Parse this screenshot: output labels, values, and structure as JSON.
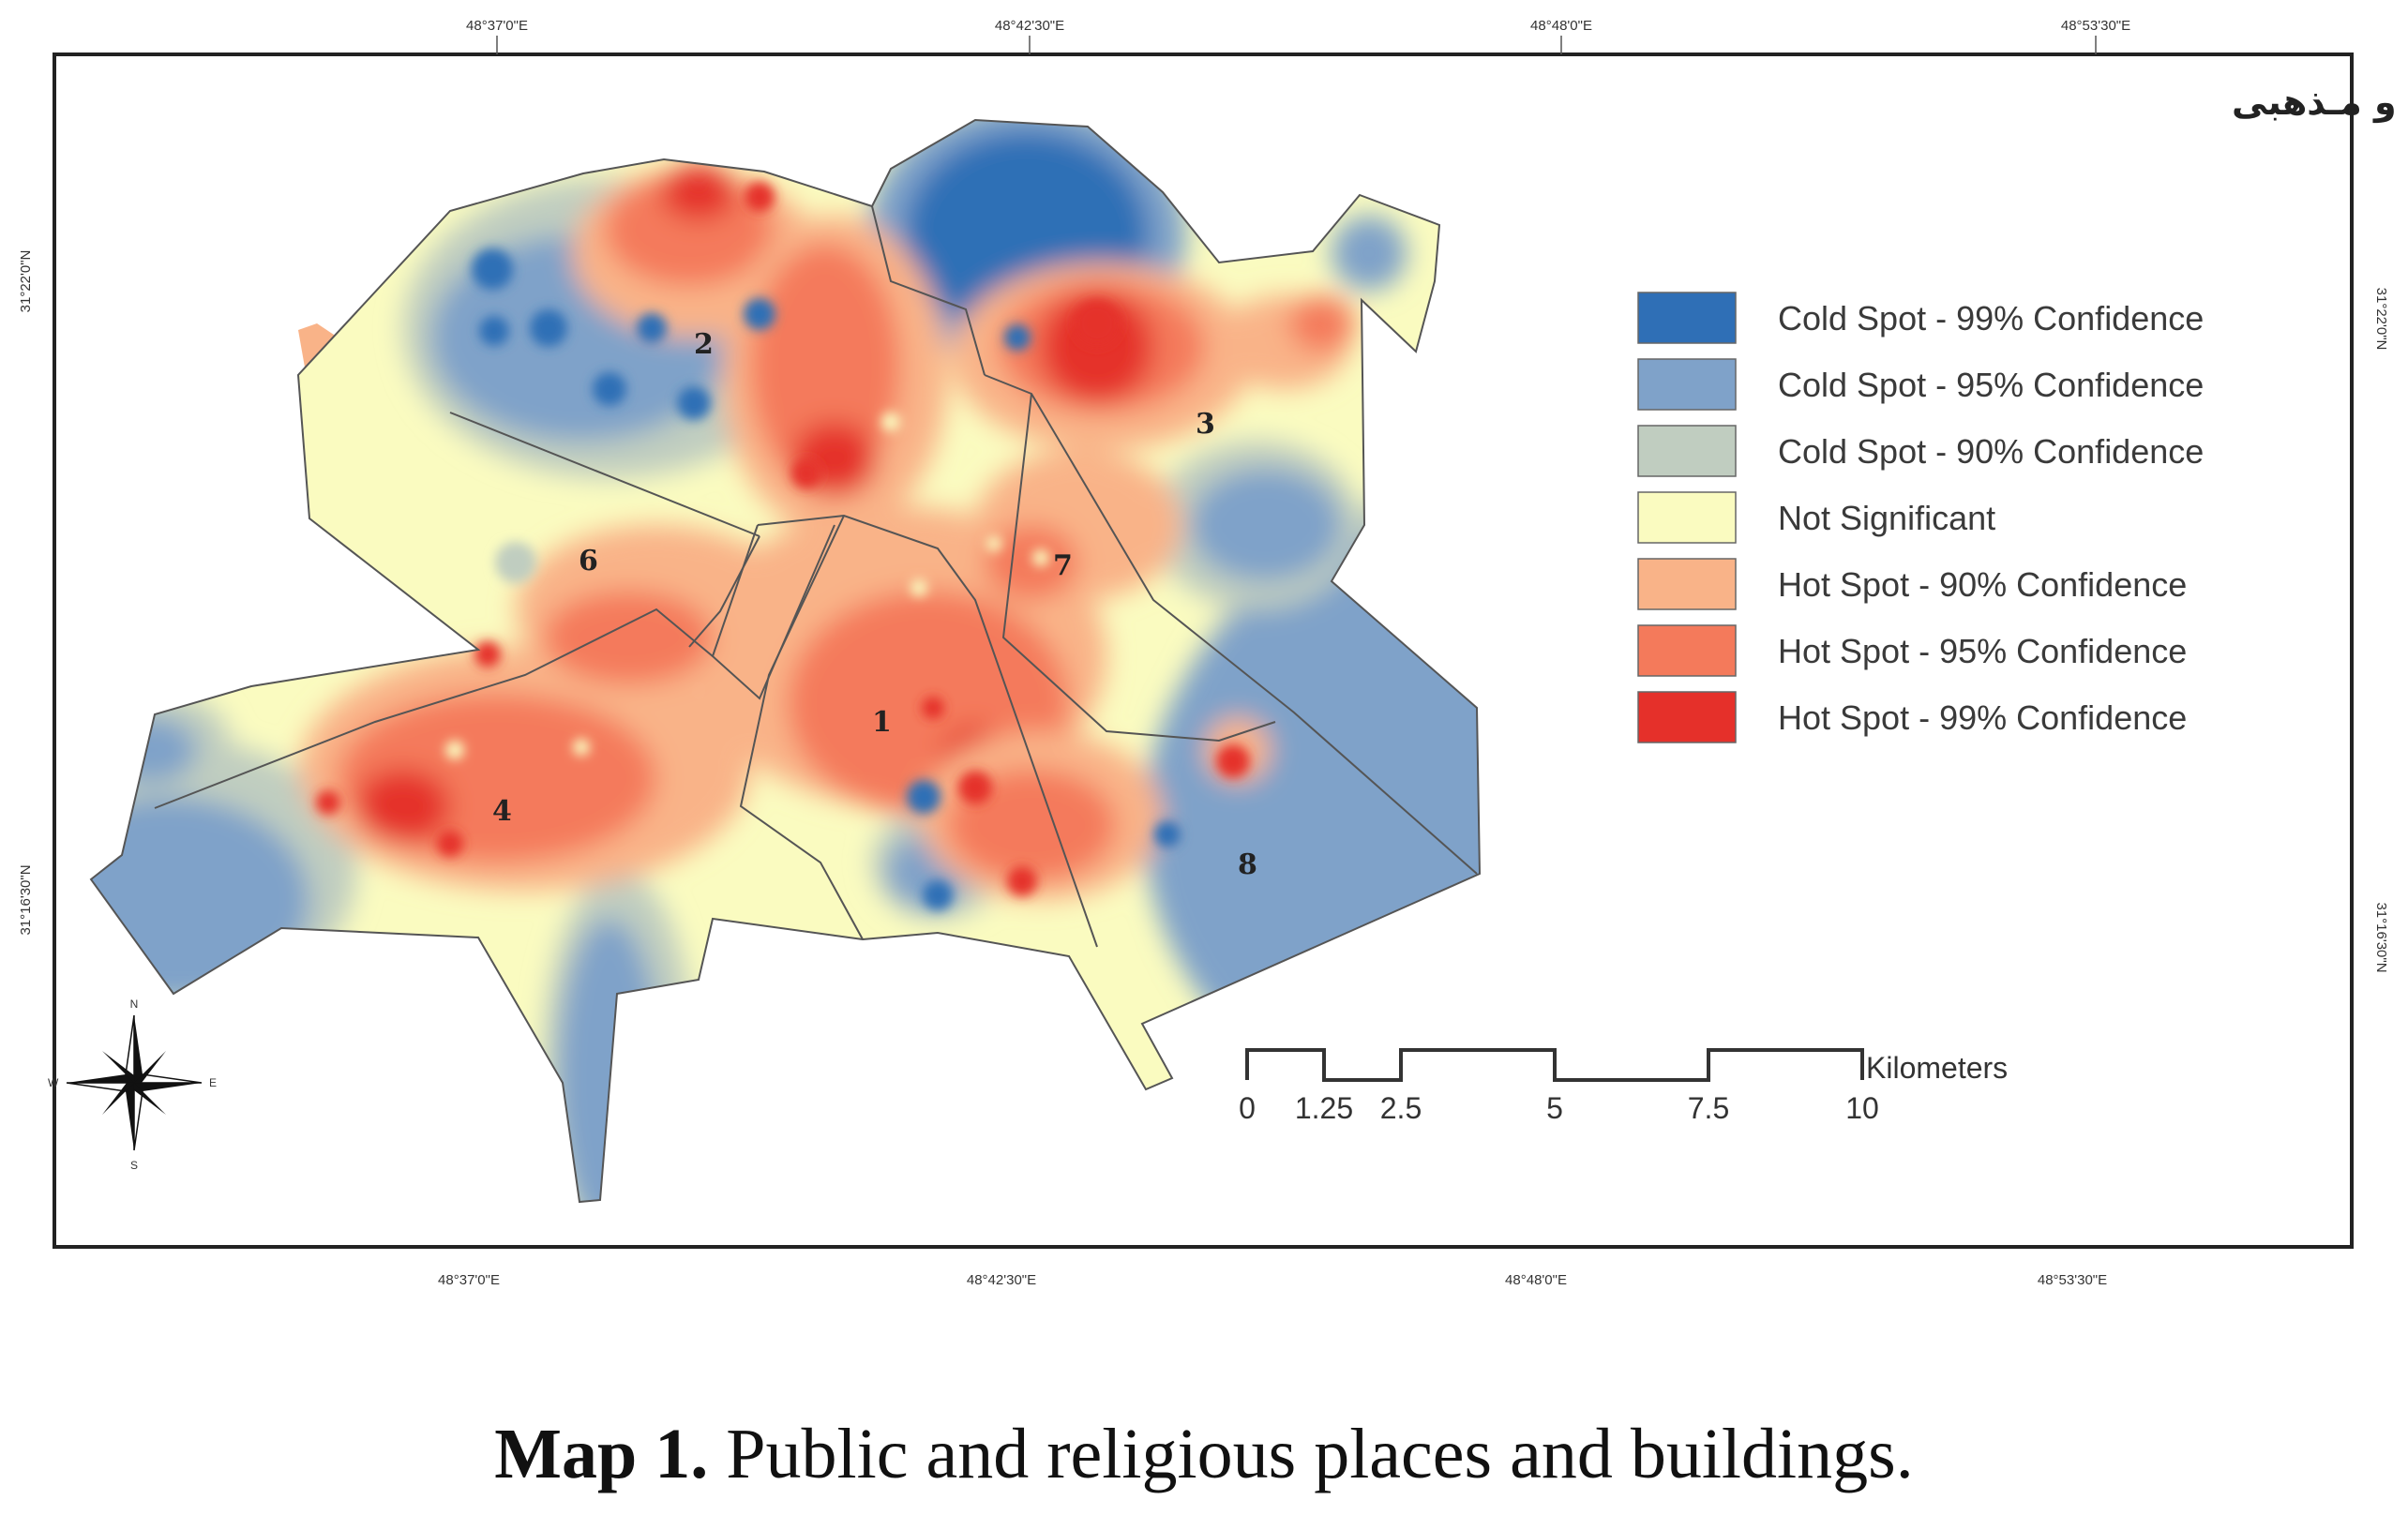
{
  "map": {
    "title": "نقشه شاخص ساختمان و مکان هـای عمومـی و مـذهبی",
    "top_coords": [
      "48°37'0\"E",
      "48°42'30\"E",
      "48°48'0\"E",
      "48°53'30\"E"
    ],
    "bottom_coords": [
      "48°37'0\"E",
      "48°42'30\"E",
      "48°48'0\"E",
      "48°53'30\"E"
    ],
    "left_coords": [
      "31°22'0\"N",
      "31°16'30\"N"
    ],
    "right_coords": [
      "31°22'0\"N",
      "31°16'30\"N"
    ],
    "districts": [
      "1",
      "2",
      "3",
      "4",
      "6",
      "7",
      "8"
    ],
    "legend": [
      {
        "label": "Cold Spot - 99% Confidence",
        "color": "#2f6fb6"
      },
      {
        "label": "Cold Spot - 95% Confidence",
        "color": "#7fa2c9"
      },
      {
        "label": "Cold Spot - 90% Confidence",
        "color": "#c0cdc0"
      },
      {
        "label": "Not Significant",
        "color": "#fafbc0"
      },
      {
        "label": "Hot Spot - 90% Confidence",
        "color": "#f9b388"
      },
      {
        "label": "Hot Spot - 95% Confidence",
        "color": "#f47a5b"
      },
      {
        "label": "Hot Spot - 99% Confidence",
        "color": "#e5302a"
      }
    ],
    "scale": {
      "ticks": [
        "0",
        "1.25",
        "2.5",
        "5",
        "7.5",
        "10"
      ],
      "unit": "Kilometers"
    },
    "compass": {
      "n": "N",
      "s": "S",
      "e": "E",
      "w": "W"
    }
  },
  "caption": {
    "label": "Map 1.",
    "text": " Public and religious places and buildings."
  }
}
